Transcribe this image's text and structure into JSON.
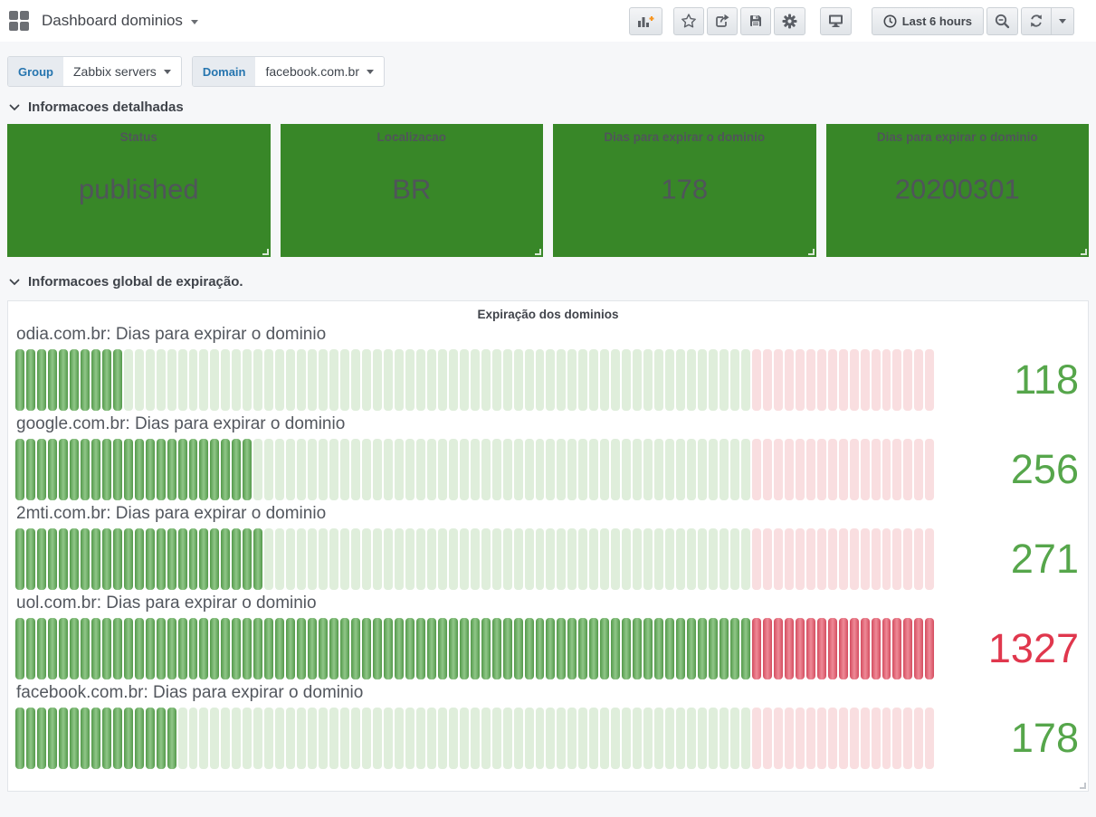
{
  "header": {
    "title": "Dashboard dominios",
    "icons": [
      "grid-icon",
      "add-panel-icon",
      "star-icon",
      "share-icon",
      "save-icon",
      "gear-icon",
      "monitor-icon",
      "clock-icon",
      "zoom-out-icon",
      "refresh-icon",
      "caret-down-icon"
    ],
    "time_range": "Last 6 hours",
    "accent_orange": "#f79520",
    "icon_color": "#5b5f66"
  },
  "filters": [
    {
      "label": "Group",
      "value": "Zabbix servers"
    },
    {
      "label": "Domain",
      "value": "facebook.com.br"
    }
  ],
  "sections": [
    {
      "title": "Informacoes detalhadas"
    },
    {
      "title": "Informacoes global de expiração."
    }
  ],
  "stat_panels": [
    {
      "title": "Status",
      "value": "published"
    },
    {
      "title": "Localizacao",
      "value": "BR"
    },
    {
      "title": "Dias para expirar o dominio",
      "value": "178"
    },
    {
      "title": "Dias para expirar o dominio",
      "value": "20200301"
    }
  ],
  "expiration_panel": {
    "title": "Expiração dos dominios"
  },
  "chart_data": {
    "type": "bar",
    "title": "Expiração dos dominios",
    "orientation": "horizontal-retro-lcd-gauge",
    "max": 1000,
    "threshold_red": 800,
    "segments": 85,
    "rows": [
      {
        "label": "odia.com.br: Dias para expirar o dominio",
        "value": 118
      },
      {
        "label": "google.com.br: Dias para expirar o dominio",
        "value": 256
      },
      {
        "label": "2mti.com.br: Dias para expirar o dominio",
        "value": 271
      },
      {
        "label": "uol.com.br: Dias para expirar o dominio",
        "value": 1327
      },
      {
        "label": "facebook.com.br: Dias para expirar o dominio",
        "value": 178
      }
    ],
    "colors": {
      "filled_green": "#549a4b",
      "filled_red": "#d44d60",
      "empty_green": "#dfeedb",
      "empty_red": "#f9dee0",
      "value_green": "#56a64b",
      "value_red": "#e0374d",
      "stat_green": "#388728"
    }
  }
}
